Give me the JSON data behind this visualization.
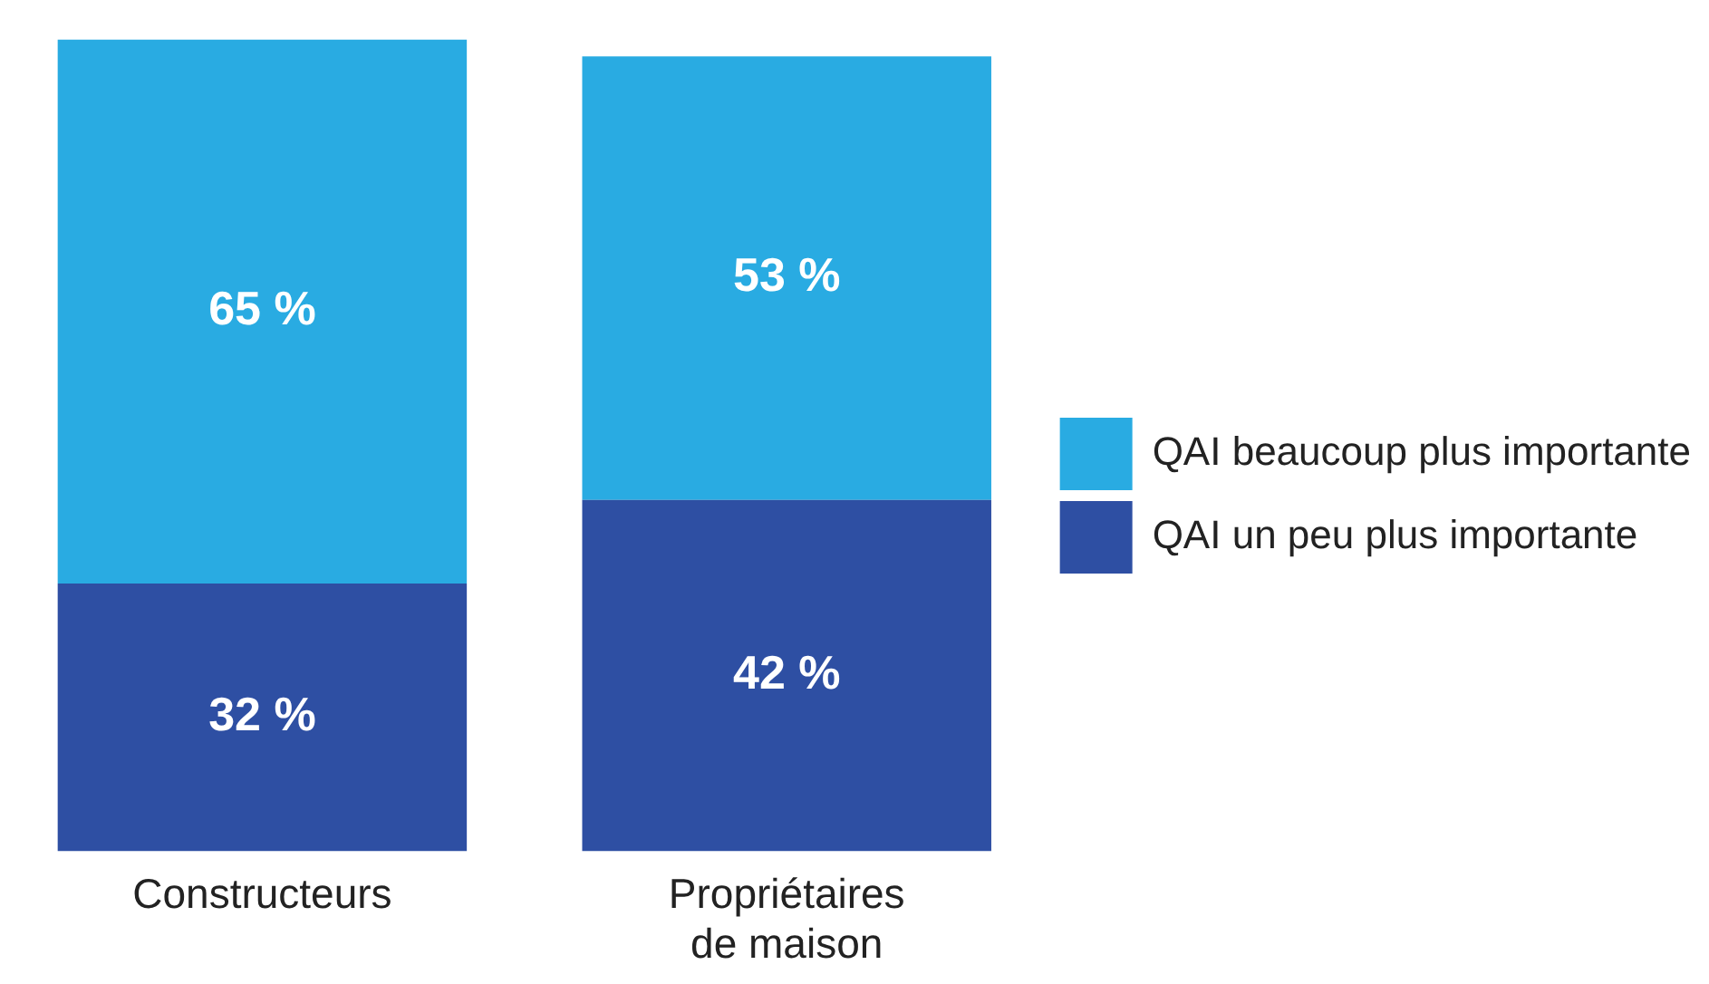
{
  "chart_data": {
    "type": "bar",
    "stacked": true,
    "categories": [
      "Constructeurs",
      "Propriétaires de maison"
    ],
    "series": [
      {
        "name": "QAI un peu plus importante",
        "color": "#2e4fa3",
        "values": [
          32,
          42
        ],
        "value_labels": [
          "32 %",
          "42 %"
        ]
      },
      {
        "name": "QAI beaucoup plus importante",
        "color": "#29abe2",
        "values": [
          65,
          53
        ],
        "value_labels": [
          "65 %",
          "53 %"
        ]
      }
    ],
    "legend": "right"
  }
}
